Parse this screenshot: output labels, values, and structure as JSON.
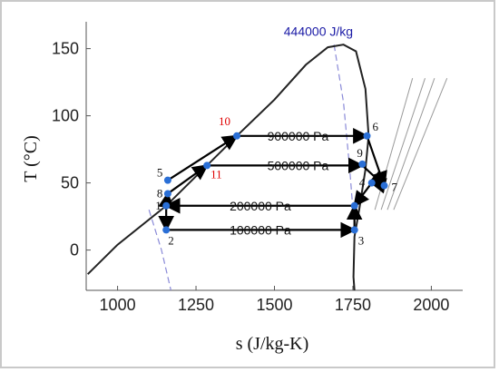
{
  "chart_data": {
    "type": "scatter",
    "xlabel": "s (J/kg-K)",
    "ylabel": "T (°C)",
    "xlim": [
      900,
      2100
    ],
    "ylim": [
      -30,
      170
    ],
    "x_ticks": [
      1000,
      1250,
      1500,
      1750,
      2000
    ],
    "y_ticks": [
      0,
      50,
      100,
      150
    ],
    "grid": false,
    "points": [
      {
        "label": "1",
        "x": 1155,
        "y": 33,
        "color": "#111111"
      },
      {
        "label": "2",
        "x": 1155,
        "y": 15,
        "color": "#111111"
      },
      {
        "label": "3",
        "x": 1755,
        "y": 15,
        "color": "#111111"
      },
      {
        "label": "4",
        "x": 1810,
        "y": 50,
        "color": "#111111"
      },
      {
        "label": "5",
        "x": 1160,
        "y": 52,
        "color": "#111111"
      },
      {
        "label": "6",
        "x": 1795,
        "y": 85,
        "color": "#111111"
      },
      {
        "label": "7",
        "x": 1850,
        "y": 48,
        "color": "#111111"
      },
      {
        "label": "8",
        "x": 1160,
        "y": 42,
        "color": "#111111"
      },
      {
        "label": "9",
        "x": 1780,
        "y": 64,
        "color": "#111111"
      },
      {
        "label": "10",
        "x": 1380,
        "y": 85,
        "color": "#e00000"
      },
      {
        "label": "11",
        "x": 1285,
        "y": 63,
        "color": "#e00000"
      },
      {
        "label": "",
        "x": 1755,
        "y": 33,
        "color": "#111111"
      }
    ],
    "isobars": [
      {
        "label": "900000 Pa",
        "x": 1575,
        "y": 85
      },
      {
        "label": "500000 Pa",
        "x": 1575,
        "y": 63
      },
      {
        "label": "200000 Pa",
        "x": 1455,
        "y": 33
      },
      {
        "label": "100000 Pa",
        "x": 1455,
        "y": 15
      }
    ],
    "isenthalp_label": {
      "label": "444000 J/kg",
      "x": 1640,
      "y": 163
    },
    "saturation_dome": {
      "left": [
        [
          905,
          -18
        ],
        [
          1000,
          4
        ],
        [
          1155,
          33
        ],
        [
          1380,
          85
        ],
        [
          1500,
          112
        ],
        [
          1600,
          138
        ],
        [
          1670,
          151
        ],
        [
          1720,
          153
        ]
      ],
      "right": [
        [
          1720,
          153
        ],
        [
          1760,
          148
        ],
        [
          1790,
          120
        ],
        [
          1800,
          85
        ],
        [
          1790,
          60
        ],
        [
          1770,
          30
        ],
        [
          1755,
          10
        ],
        [
          1752,
          -20
        ],
        [
          1755,
          -30
        ]
      ]
    },
    "isenthalp_line": [
      [
        1690,
        153
      ],
      [
        1720,
        110
      ],
      [
        1740,
        60
      ],
      [
        1750,
        30
      ]
    ],
    "isenthalp_line_left": [
      [
        1100,
        30
      ],
      [
        1140,
        0
      ],
      [
        1170,
        -30
      ]
    ],
    "superheat_lines": [
      [
        [
          1820,
          30
        ],
        [
          1940,
          128
        ]
      ],
      [
        [
          1840,
          30
        ],
        [
          1980,
          128
        ]
      ],
      [
        [
          1860,
          30
        ],
        [
          2010,
          128
        ]
      ],
      [
        [
          1880,
          30
        ],
        [
          2050,
          128
        ]
      ]
    ],
    "arrows": [
      {
        "from": [
          1155,
          33
        ],
        "to": [
          1155,
          15
        ]
      },
      {
        "from": [
          1155,
          15
        ],
        "to": [
          1755,
          15
        ]
      },
      {
        "from": [
          1755,
          15
        ],
        "to": [
          1755,
          33
        ]
      },
      {
        "from": [
          1755,
          33
        ],
        "to": [
          1155,
          33
        ]
      },
      {
        "from": [
          1155,
          33
        ],
        "to": [
          1160,
          42
        ]
      },
      {
        "from": [
          1160,
          42
        ],
        "to": [
          1285,
          63
        ]
      },
      {
        "from": [
          1285,
          63
        ],
        "to": [
          1780,
          63
        ]
      },
      {
        "from": [
          1780,
          63
        ],
        "to": [
          1850,
          48
        ]
      },
      {
        "from": [
          1160,
          52
        ],
        "to": [
          1380,
          85
        ]
      },
      {
        "from": [
          1380,
          85
        ],
        "to": [
          1795,
          85
        ]
      },
      {
        "from": [
          1795,
          85
        ],
        "to": [
          1850,
          48
        ]
      },
      {
        "from": [
          1850,
          48
        ],
        "to": [
          1810,
          50
        ]
      },
      {
        "from": [
          1810,
          50
        ],
        "to": [
          1755,
          33
        ]
      }
    ]
  }
}
